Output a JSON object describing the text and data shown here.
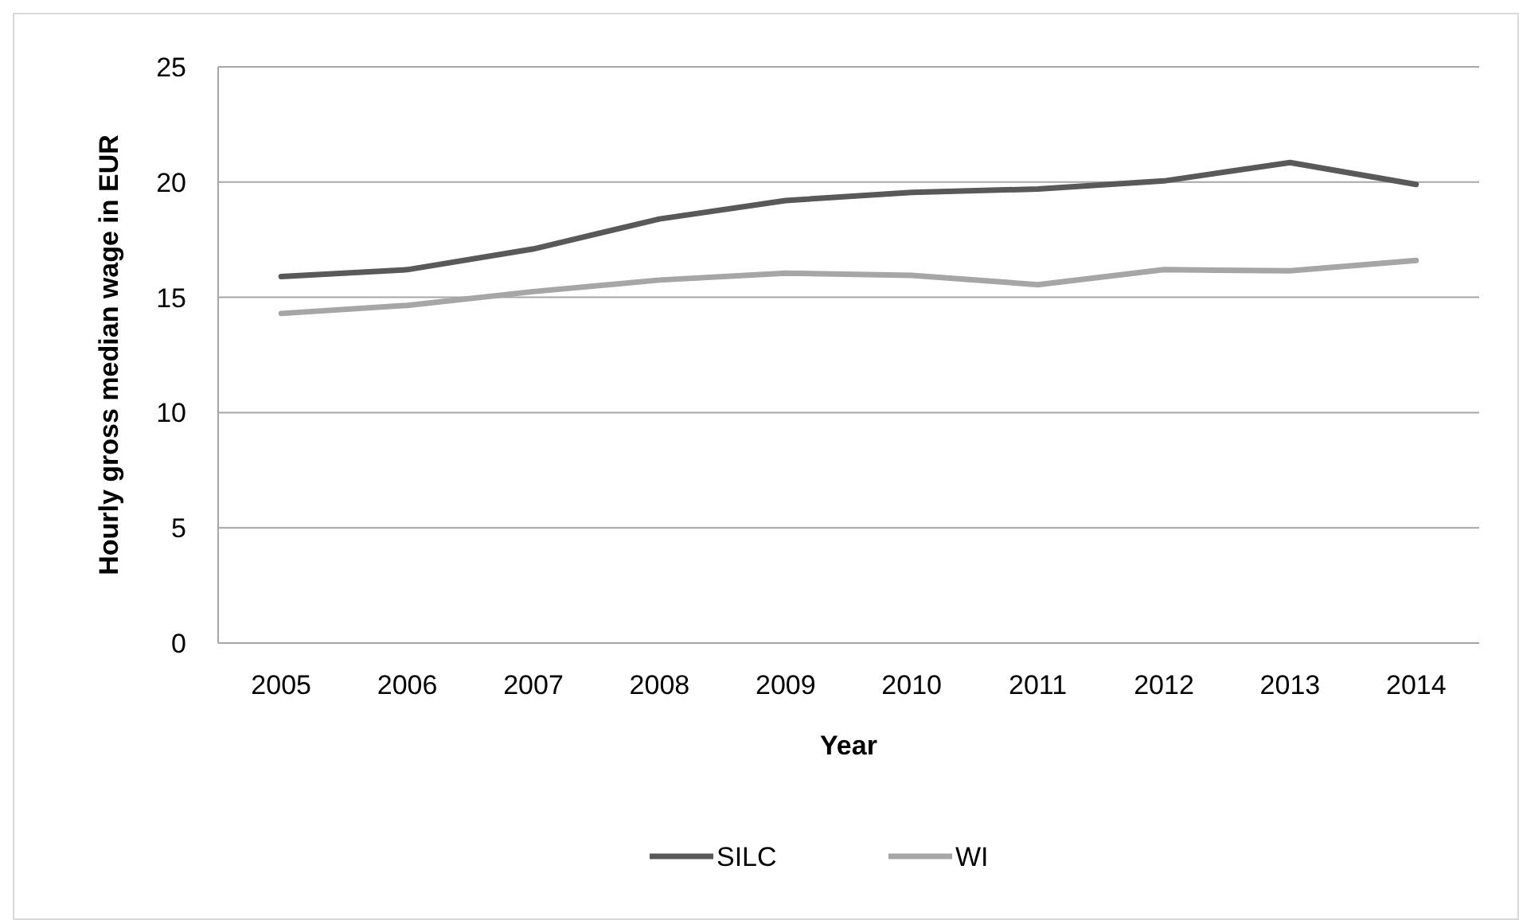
{
  "chart_data": {
    "type": "line",
    "xlabel": "Year",
    "ylabel": "Hourly gross median wage in EUR",
    "categories": [
      "2005",
      "2006",
      "2007",
      "2008",
      "2009",
      "2010",
      "2011",
      "2012",
      "2013",
      "2014"
    ],
    "series": [
      {
        "name": "SILC",
        "color": "#595959",
        "values": [
          15.9,
          16.2,
          17.1,
          18.4,
          19.2,
          19.55,
          19.7,
          20.05,
          20.85,
          19.9
        ]
      },
      {
        "name": "WI",
        "color": "#a6a6a6",
        "values": [
          14.3,
          14.65,
          15.25,
          15.75,
          16.05,
          15.95,
          15.55,
          16.2,
          16.15,
          16.6
        ]
      }
    ],
    "ylim": [
      0,
      25
    ],
    "yticks": [
      0,
      5,
      10,
      15,
      20,
      25
    ],
    "grid": "y",
    "legend": "bottom",
    "marker": "none",
    "line_style": "solid"
  }
}
